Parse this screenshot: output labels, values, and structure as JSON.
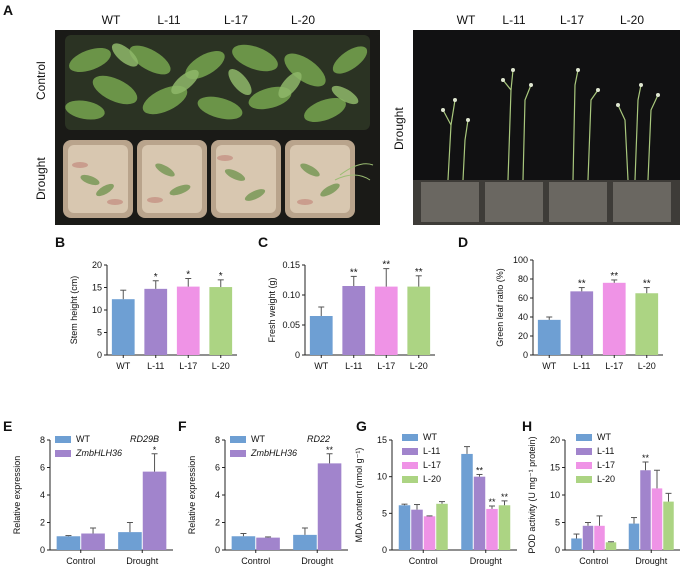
{
  "panelA": {
    "letter": "A",
    "col_labels": [
      "WT",
      "L-11",
      "L-17",
      "L-20"
    ],
    "row_labels": [
      "Control",
      "Drought"
    ],
    "right_label": "Drought"
  },
  "colors": {
    "WT": "#6e9fd3",
    "L11": "#a184cc",
    "L17": "#ef93e6",
    "L20": "#acd483"
  },
  "chart_data": [
    {
      "id": "B",
      "type": "bar",
      "letter": "B",
      "categories": [
        "WT",
        "L-11",
        "L-17",
        "L-20"
      ],
      "values": [
        12.4,
        14.7,
        15.2,
        15.1
      ],
      "errors": [
        2.0,
        1.8,
        1.8,
        1.6
      ],
      "sig": [
        "",
        "*",
        "*",
        "*"
      ],
      "ylabel": "Stem height (cm)",
      "ylim": [
        0,
        20
      ],
      "ticks": [
        0,
        5,
        10,
        15,
        20
      ]
    },
    {
      "id": "C",
      "type": "bar",
      "letter": "C",
      "categories": [
        "WT",
        "L-11",
        "L-17",
        "L-20"
      ],
      "values": [
        0.065,
        0.115,
        0.114,
        0.114
      ],
      "errors": [
        0.015,
        0.016,
        0.03,
        0.018
      ],
      "sig": [
        "",
        "**",
        "**",
        "**"
      ],
      "ylabel": "Fresh weight (g)",
      "ylim": [
        0,
        0.15
      ],
      "ticks": [
        "0",
        "0.05",
        "0.10",
        "0.15"
      ]
    },
    {
      "id": "D",
      "type": "bar",
      "letter": "D",
      "categories": [
        "WT",
        "L-11",
        "L-17",
        "L-20"
      ],
      "values": [
        37,
        67,
        76,
        65
      ],
      "errors": [
        3,
        4,
        3,
        6
      ],
      "sig": [
        "",
        "**",
        "**",
        "**"
      ],
      "ylabel": "Green leaf ratio (%)",
      "ylim": [
        0,
        100
      ],
      "ticks": [
        0,
        20,
        40,
        60,
        80,
        100
      ]
    },
    {
      "id": "E",
      "type": "bar",
      "letter": "E",
      "groups": [
        "Control",
        "Drought"
      ],
      "series": [
        {
          "name": "WT",
          "values": [
            1.0,
            1.3
          ],
          "errors": [
            0.05,
            0.7
          ]
        },
        {
          "name": "ZmbHLH36",
          "values": [
            1.2,
            5.7
          ],
          "errors": [
            0.4,
            1.3
          ]
        }
      ],
      "sig": [
        [
          "",
          ""
        ],
        [
          "",
          "*"
        ]
      ],
      "gene": "RD29B",
      "ylabel": "Relative expression",
      "ylim": [
        0,
        8
      ],
      "ticks": [
        0,
        2,
        4,
        6,
        8
      ]
    },
    {
      "id": "F",
      "type": "bar",
      "letter": "F",
      "groups": [
        "Control",
        "Drought"
      ],
      "series": [
        {
          "name": "WT",
          "values": [
            1.0,
            1.1
          ],
          "errors": [
            0.2,
            0.5
          ]
        },
        {
          "name": "ZmbHLH36",
          "values": [
            0.9,
            6.3
          ],
          "errors": [
            0.05,
            0.7
          ]
        }
      ],
      "sig": [
        [
          "",
          ""
        ],
        [
          "",
          "**"
        ]
      ],
      "gene": "RD22",
      "ylabel": "Relative expression",
      "ylim": [
        0,
        8
      ],
      "ticks": [
        0,
        2,
        4,
        6,
        8
      ]
    },
    {
      "id": "G",
      "type": "bar",
      "letter": "G",
      "groups": [
        "Control",
        "Drought"
      ],
      "series": [
        {
          "name": "WT",
          "values": [
            6.1,
            13.1
          ],
          "errors": [
            0.15,
            1.0
          ]
        },
        {
          "name": "L-11",
          "values": [
            5.5,
            10.0
          ],
          "errors": [
            0.7,
            0.3
          ]
        },
        {
          "name": "L-17",
          "values": [
            4.6,
            5.6
          ],
          "errors": [
            0.05,
            0.4
          ]
        },
        {
          "name": "L-20",
          "values": [
            6.3,
            6.1
          ],
          "errors": [
            0.3,
            0.6
          ]
        }
      ],
      "sig": [
        [
          "",
          ""
        ],
        [
          "",
          "**"
        ],
        [
          "",
          "**"
        ],
        [
          "",
          "**"
        ]
      ],
      "ylabel": "MDA content (nmol g⁻¹)",
      "ylim": [
        0,
        15
      ],
      "ticks": [
        0,
        5,
        10,
        15
      ]
    },
    {
      "id": "H",
      "type": "bar",
      "letter": "H",
      "groups": [
        "Control",
        "Drought"
      ],
      "series": [
        {
          "name": "WT",
          "values": [
            2.1,
            4.8
          ],
          "errors": [
            0.8,
            1.1
          ]
        },
        {
          "name": "L-11",
          "values": [
            4.4,
            14.5
          ],
          "errors": [
            0.6,
            1.5
          ]
        },
        {
          "name": "L-17",
          "values": [
            4.4,
            11.2
          ],
          "errors": [
            1.8,
            3.3
          ]
        },
        {
          "name": "L-20",
          "values": [
            1.4,
            8.8
          ],
          "errors": [
            0.1,
            1.5
          ]
        }
      ],
      "sig": [
        [
          "",
          ""
        ],
        [
          "",
          "**"
        ],
        [
          "",
          ""
        ],
        [
          "",
          ""
        ]
      ],
      "ylabel": "POD activity (U mg⁻¹ protein)",
      "ylim": [
        0,
        20
      ],
      "ticks": [
        0,
        5,
        10,
        15,
        20
      ]
    }
  ]
}
